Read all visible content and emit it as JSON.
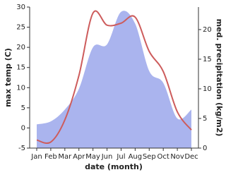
{
  "chart_data": {
    "type": "line-area",
    "xlabel": "date (month)",
    "ylabel": "max temp (C)",
    "y2label": "med. precipitation (kg/m2)",
    "categories": [
      "Jan",
      "Feb",
      "Mar",
      "Apr",
      "May",
      "Jun",
      "Jul",
      "Aug",
      "Sep",
      "Oct",
      "Nov",
      "Dec"
    ],
    "series": [
      {
        "name": "med. precipitation",
        "color": "#aab4ee",
        "axis": "y2",
        "kind": "area",
        "values": [
          4,
          4.5,
          6.5,
          10,
          17,
          17.5,
          23,
          21,
          13,
          11,
          5,
          6.5
        ]
      },
      {
        "name": "max temp",
        "color": "#cd5c5c",
        "kind": "line",
        "values": [
          -3,
          -3.5,
          2,
          13,
          28.5,
          25.5,
          26,
          27.5,
          19,
          14,
          4,
          -0.5
        ]
      }
    ],
    "ylim": [
      -5,
      30
    ],
    "yticks": [
      -5,
      0,
      5,
      10,
      15,
      20,
      25,
      30
    ],
    "y2lim": [
      0,
      23.8
    ],
    "y2ticks": [
      0,
      5,
      10,
      15,
      20
    ]
  }
}
